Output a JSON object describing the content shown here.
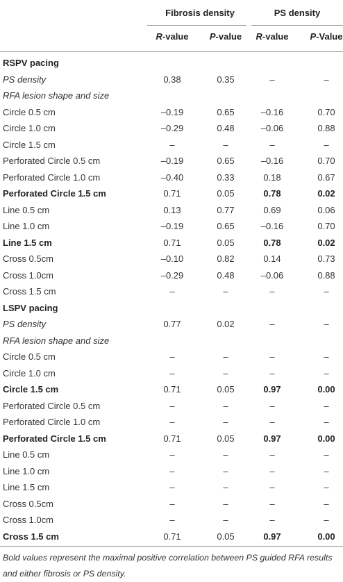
{
  "header": {
    "groups": [
      "Fibrosis density",
      "PS density"
    ],
    "subheaders": [
      {
        "italic": "R",
        "text": "-value"
      },
      {
        "italic": "P",
        "text": "-value"
      },
      {
        "italic": "R",
        "text": "-value"
      },
      {
        "italic": "P",
        "text": "-Value"
      }
    ]
  },
  "table": {
    "rows": [
      {
        "cells": [
          "RSPV pacing"
        ],
        "bold": [
          0
        ]
      },
      {
        "cells": [
          "PS density",
          "0.38",
          "0.35",
          "–",
          "–"
        ],
        "italic": [
          0
        ]
      },
      {
        "cells": [
          "RFA lesion shape and size"
        ],
        "italic": [
          0
        ]
      },
      {
        "cells": [
          "Circle 0.5 cm",
          "–0.19",
          "0.65",
          "–0.16",
          "0.70"
        ]
      },
      {
        "cells": [
          "Circle 1.0 cm",
          "–0.29",
          "0.48",
          "–0.06",
          "0.88"
        ]
      },
      {
        "cells": [
          "Circle 1.5 cm",
          "–",
          "–",
          "–",
          "–"
        ]
      },
      {
        "cells": [
          "Perforated Circle 0.5 cm",
          "–0.19",
          "0.65",
          "–0.16",
          "0.70"
        ]
      },
      {
        "cells": [
          "Perforated Circle 1.0 cm",
          "–0.40",
          "0.33",
          "0.18",
          "0.67"
        ]
      },
      {
        "cells": [
          "Perforated Circle 1.5 cm",
          "0.71",
          "0.05",
          "0.78",
          "0.02"
        ],
        "bold": [
          0,
          3,
          4
        ]
      },
      {
        "cells": [
          "Line 0.5 cm",
          "0.13",
          "0.77",
          "0.69",
          "0.06"
        ]
      },
      {
        "cells": [
          "Line 1.0 cm",
          "–0.19",
          "0.65",
          "–0.16",
          "0.70"
        ]
      },
      {
        "cells": [
          "Line 1.5 cm",
          "0.71",
          "0.05",
          "0.78",
          "0.02"
        ],
        "bold": [
          0,
          3,
          4
        ]
      },
      {
        "cells": [
          "Cross 0.5cm",
          "–0.10",
          "0.82",
          "0.14",
          "0.73"
        ]
      },
      {
        "cells": [
          "Cross 1.0cm",
          "–0.29",
          "0.48",
          "–0.06",
          "0.88"
        ]
      },
      {
        "cells": [
          "Cross 1.5 cm",
          "–",
          "–",
          "–",
          "–"
        ]
      },
      {
        "cells": [
          "LSPV pacing"
        ],
        "bold": [
          0
        ]
      },
      {
        "cells": [
          "PS density",
          "0.77",
          "0.02",
          "–",
          "–"
        ],
        "italic": [
          0
        ]
      },
      {
        "cells": [
          "RFA lesion shape and size"
        ],
        "italic": [
          0
        ]
      },
      {
        "cells": [
          "Circle 0.5 cm",
          "–",
          "–",
          "–",
          "–"
        ]
      },
      {
        "cells": [
          "Circle 1.0 cm",
          "–",
          "–",
          "–",
          "–"
        ]
      },
      {
        "cells": [
          "Circle 1.5 cm",
          "0.71",
          "0.05",
          "0.97",
          "0.00"
        ],
        "bold": [
          0,
          3,
          4
        ]
      },
      {
        "cells": [
          "Perforated Circle 0.5 cm",
          "–",
          "–",
          "–",
          "–"
        ]
      },
      {
        "cells": [
          "Perforated Circle 1.0 cm",
          "–",
          "–",
          "–",
          "–"
        ]
      },
      {
        "cells": [
          "Perforated Circle 1.5 cm",
          "0.71",
          "0.05",
          "0.97",
          "0.00"
        ],
        "bold": [
          0,
          3,
          4
        ]
      },
      {
        "cells": [
          "Line 0.5 cm",
          "–",
          "–",
          "–",
          "–"
        ]
      },
      {
        "cells": [
          "Line 1.0 cm",
          "–",
          "–",
          "–",
          "–"
        ]
      },
      {
        "cells": [
          "Line 1.5 cm",
          "–",
          "–",
          "–",
          "–"
        ]
      },
      {
        "cells": [
          "Cross 0.5cm",
          "–",
          "–",
          "–",
          "–"
        ]
      },
      {
        "cells": [
          "Cross 1.0cm",
          "–",
          "–",
          "–",
          "–"
        ]
      },
      {
        "cells": [
          "Cross 1.5 cm",
          "0.71",
          "0.05",
          "0.97",
          "0.00"
        ],
        "bold": [
          0,
          3,
          4
        ]
      }
    ]
  },
  "footnote": "Bold values represent the maximal positive correlation between PS guided RFA results and either fibrosis or PS density."
}
